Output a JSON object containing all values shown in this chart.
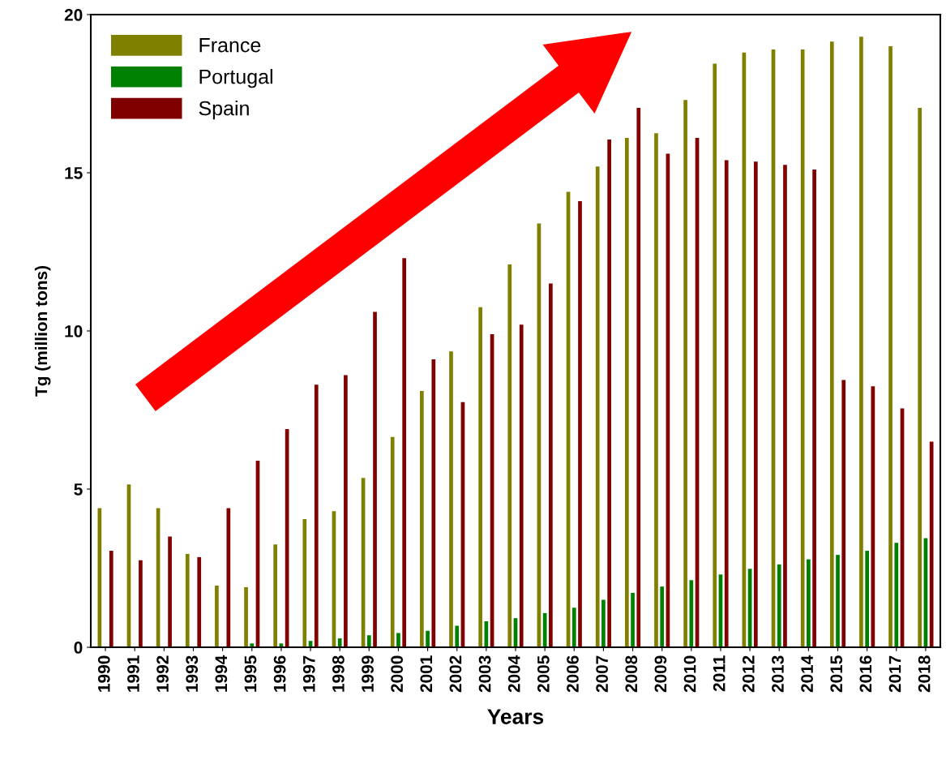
{
  "chart_data": {
    "type": "bar",
    "xlabel": "Years",
    "ylabel": "Tg (million tons)",
    "categories": [
      "1990",
      "1991",
      "1992",
      "1993",
      "1994",
      "1995",
      "1996",
      "1997",
      "1998",
      "1999",
      "2000",
      "2001",
      "2002",
      "2003",
      "2004",
      "2005",
      "2006",
      "2007",
      "2008",
      "2009",
      "2010",
      "2011",
      "2012",
      "2013",
      "2014",
      "2015",
      "2016",
      "2017",
      "2018"
    ],
    "series": [
      {
        "name": "France",
        "color": "#808000",
        "values": [
          4.4,
          5.15,
          4.4,
          2.95,
          1.95,
          1.9,
          3.25,
          4.05,
          4.3,
          5.35,
          6.65,
          8.1,
          9.35,
          10.75,
          12.1,
          13.4,
          14.4,
          15.2,
          16.1,
          16.25,
          17.3,
          18.45,
          18.8,
          18.9,
          18.9,
          19.15,
          19.3,
          19.0,
          17.05
        ]
      },
      {
        "name": "Portugal",
        "color": "#008000",
        "values": [
          null,
          null,
          null,
          null,
          null,
          0.12,
          0.12,
          0.2,
          0.28,
          0.38,
          0.45,
          0.52,
          0.68,
          0.82,
          0.92,
          1.08,
          1.25,
          1.5,
          1.72,
          1.92,
          2.12,
          2.3,
          2.48,
          2.62,
          2.78,
          2.92,
          3.05,
          3.3,
          3.45
        ]
      },
      {
        "name": "Spain",
        "color": "#800000",
        "values": [
          3.05,
          2.75,
          3.5,
          2.85,
          4.4,
          5.9,
          6.9,
          8.3,
          8.6,
          10.6,
          12.3,
          9.1,
          7.75,
          9.9,
          10.2,
          11.5,
          14.1,
          16.05,
          17.05,
          15.6,
          16.1,
          15.4,
          15.35,
          15.25,
          15.1,
          8.45,
          8.25,
          7.55,
          6.5
        ]
      }
    ],
    "ylim": [
      0,
      20
    ],
    "yticks": [
      0,
      5,
      10,
      15,
      20
    ],
    "grid": false,
    "legend": "top left"
  }
}
